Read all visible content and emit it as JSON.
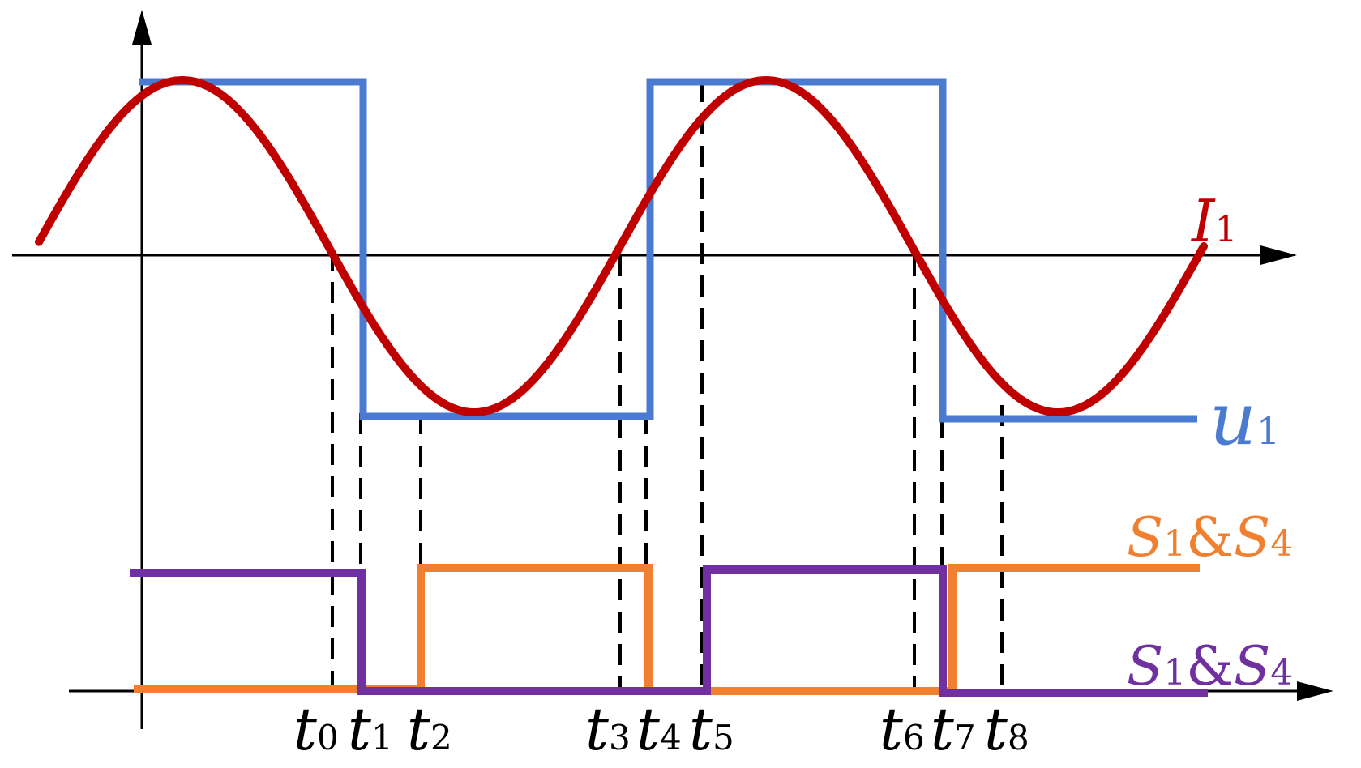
{
  "labels": {
    "current": {
      "main": "I",
      "sub": "1"
    },
    "voltage": {
      "main": "u",
      "sub": "1"
    },
    "switch_orange": {
      "a": "S",
      "a_sub": "1",
      "amp": "&",
      "b": "S",
      "b_sub": "4"
    },
    "switch_purple": {
      "a": "S",
      "a_sub": "1",
      "amp": "&",
      "b": "S",
      "b_sub": "4"
    }
  },
  "time_marks": [
    {
      "main": "t",
      "sub": "0"
    },
    {
      "main": "t",
      "sub": "1"
    },
    {
      "main": "t",
      "sub": "2"
    },
    {
      "main": "t",
      "sub": "3"
    },
    {
      "main": "t",
      "sub": "4"
    },
    {
      "main": "t",
      "sub": "5"
    },
    {
      "main": "t",
      "sub": "6"
    },
    {
      "main": "t",
      "sub": "7"
    },
    {
      "main": "t",
      "sub": "8"
    }
  ],
  "colors": {
    "current": "#c00000",
    "voltage": "#4a7bd0",
    "switch_orange": "#f08030",
    "switch_purple": "#7030a0",
    "axes": "#000000"
  }
}
